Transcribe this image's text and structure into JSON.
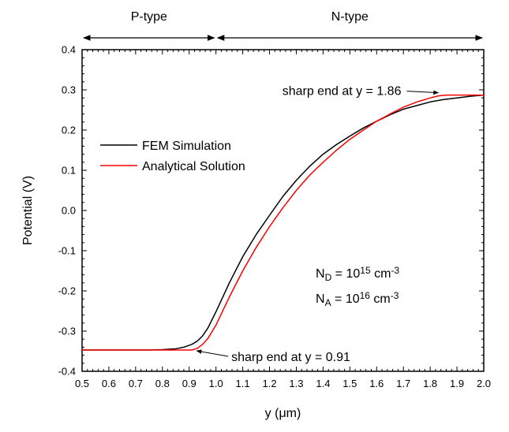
{
  "chart_data": {
    "type": "line",
    "xlabel": "y (μm)",
    "ylabel": "Potential (V)",
    "xlim": [
      0.5,
      2.0
    ],
    "ylim": [
      -0.4,
      0.4
    ],
    "xticks": [
      0.5,
      0.6,
      0.7,
      0.8,
      0.9,
      1.0,
      1.1,
      1.2,
      1.3,
      1.4,
      1.5,
      1.6,
      1.7,
      1.8,
      1.9,
      2.0
    ],
    "xtick_labels": [
      "0.5",
      "0.6",
      "0.7",
      "0.8",
      "0.9",
      "1.0",
      "1.1",
      "1.2",
      "1.3",
      "1.4",
      "1.5",
      "1.6",
      "1.7",
      "1.8",
      "1.9",
      "2.0"
    ],
    "yticks": [
      -0.4,
      -0.3,
      -0.2,
      -0.1,
      0.0,
      0.1,
      0.2,
      0.3,
      0.4
    ],
    "ytick_labels": [
      "-0.4",
      "-0.3",
      "-0.2",
      "-0.1",
      "0.0",
      "0.1",
      "0.2",
      "0.3",
      "0.4"
    ],
    "grid": false,
    "legend_position": "upper-left",
    "series": [
      {
        "name": "FEM Simulation",
        "color": "#000000",
        "x": [
          0.5,
          0.6,
          0.7,
          0.75,
          0.8,
          0.85,
          0.88,
          0.91,
          0.93,
          0.95,
          0.97,
          1.0,
          1.05,
          1.1,
          1.15,
          1.2,
          1.25,
          1.3,
          1.35,
          1.4,
          1.45,
          1.5,
          1.55,
          1.6,
          1.65,
          1.7,
          1.75,
          1.8,
          1.85,
          1.9,
          1.95,
          2.0
        ],
        "y": [
          -0.347,
          -0.347,
          -0.347,
          -0.347,
          -0.346,
          -0.344,
          -0.34,
          -0.333,
          -0.325,
          -0.312,
          -0.292,
          -0.252,
          -0.18,
          -0.115,
          -0.06,
          -0.012,
          0.035,
          0.075,
          0.11,
          0.14,
          0.164,
          0.185,
          0.205,
          0.222,
          0.238,
          0.252,
          0.261,
          0.27,
          0.276,
          0.28,
          0.284,
          0.287
        ]
      },
      {
        "name": "Analytical Solution",
        "color": "#ff0000",
        "x": [
          0.5,
          0.6,
          0.7,
          0.8,
          0.85,
          0.9,
          0.91,
          0.93,
          0.95,
          0.97,
          1.0,
          1.05,
          1.1,
          1.15,
          1.2,
          1.25,
          1.3,
          1.35,
          1.4,
          1.45,
          1.5,
          1.55,
          1.6,
          1.65,
          1.7,
          1.75,
          1.8,
          1.83,
          1.86,
          1.9,
          1.95,
          2.0
        ],
        "y": [
          -0.347,
          -0.347,
          -0.347,
          -0.347,
          -0.347,
          -0.347,
          -0.347,
          -0.343,
          -0.333,
          -0.318,
          -0.285,
          -0.215,
          -0.15,
          -0.092,
          -0.04,
          0.007,
          0.05,
          0.088,
          0.12,
          0.15,
          0.177,
          0.2,
          0.222,
          0.24,
          0.257,
          0.27,
          0.28,
          0.285,
          0.287,
          0.287,
          0.287,
          0.287
        ]
      }
    ],
    "regions": [
      {
        "label": "P-type",
        "from": 0.5,
        "to": 1.0
      },
      {
        "label": "N-type",
        "from": 1.0,
        "to": 2.0
      }
    ],
    "annotations": [
      {
        "text": "sharp end at y = 1.86",
        "target": [
          1.86,
          0.287
        ],
        "text_side": "left"
      },
      {
        "text": "sharp end at y = 0.91",
        "target": [
          0.91,
          -0.347
        ],
        "text_side": "right"
      }
    ],
    "doping": {
      "nd": {
        "base": "N",
        "sub": "D",
        "mid": " = 10",
        "sup": "15",
        "unit": " cm",
        "unit_sup": "-3"
      },
      "na": {
        "base": "N",
        "sub": "A",
        "mid": " = 10",
        "sup": "16",
        "unit": " cm",
        "unit_sup": "-3"
      }
    }
  }
}
